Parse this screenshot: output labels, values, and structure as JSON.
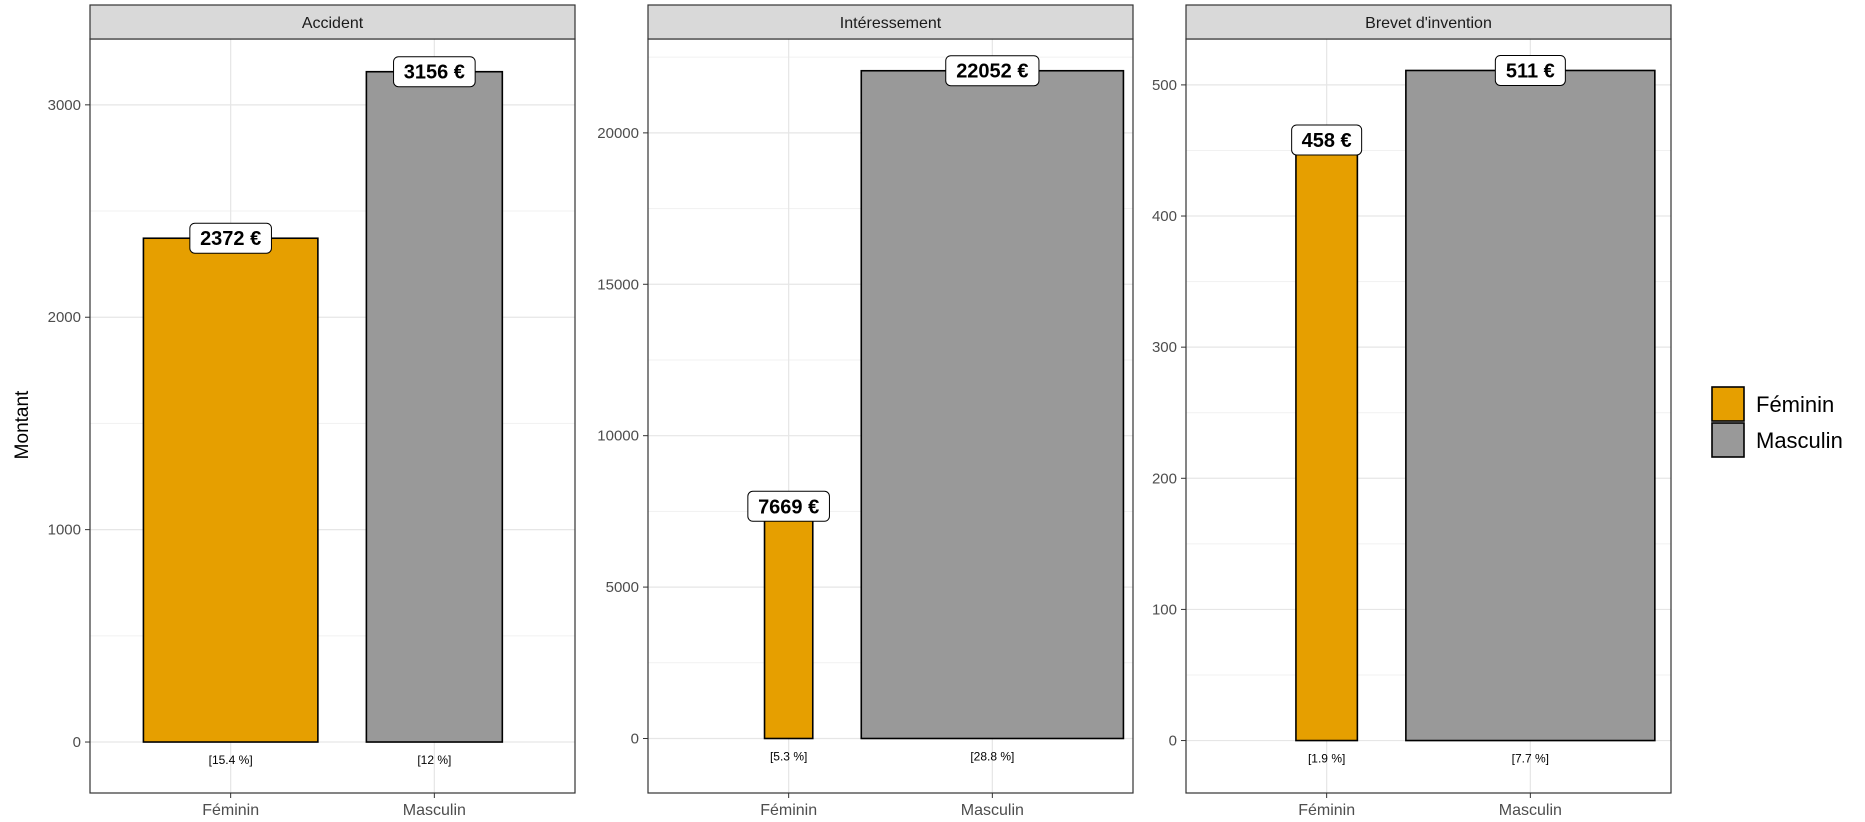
{
  "chart_data": {
    "type": "bar",
    "ylabel": "Montant",
    "categories": [
      "Féminin",
      "Masculin"
    ],
    "colors": {
      "Féminin": "#E69F00",
      "Masculin": "#999999"
    },
    "legend": {
      "position": "right",
      "entries": [
        "Féminin",
        "Masculin"
      ]
    },
    "grid": true,
    "facets": [
      {
        "title": "Accident",
        "values": [
          2372,
          3156
        ],
        "value_labels": [
          "2372 €",
          "3156 €"
        ],
        "pct_labels": [
          "[15.4 %]",
          "[12 %]"
        ],
        "bar_width_share": [
          15.4,
          12
        ],
        "ylim": [
          -240,
          3310
        ],
        "yticks": [
          0,
          1000,
          2000,
          3000
        ],
        "ytick_labels": [
          "0",
          "1000",
          "2000",
          "3000"
        ]
      },
      {
        "title": "Intéressement",
        "values": [
          7669,
          22052
        ],
        "value_labels": [
          "7669 €",
          "22052 €"
        ],
        "pct_labels": [
          "[5.3 %]",
          "[28.8 %]"
        ],
        "bar_width_share": [
          5.3,
          28.8
        ],
        "ylim": [
          -1800,
          23100
        ],
        "yticks": [
          0,
          5000,
          10000,
          15000,
          20000
        ],
        "ytick_labels": [
          "0",
          "5000",
          "10000",
          "15000",
          "20000"
        ]
      },
      {
        "title": "Brevet d'invention",
        "values": [
          458,
          511
        ],
        "value_labels": [
          "458 €",
          "511 €"
        ],
        "pct_labels": [
          "[1.9 %]",
          "[7.7 %]"
        ],
        "bar_width_share": [
          1.9,
          7.7
        ],
        "ylim": [
          -40,
          535
        ],
        "yticks": [
          0,
          100,
          200,
          300,
          400,
          500
        ],
        "ytick_labels": [
          "0",
          "100",
          "200",
          "300",
          "400",
          "500"
        ]
      }
    ]
  }
}
